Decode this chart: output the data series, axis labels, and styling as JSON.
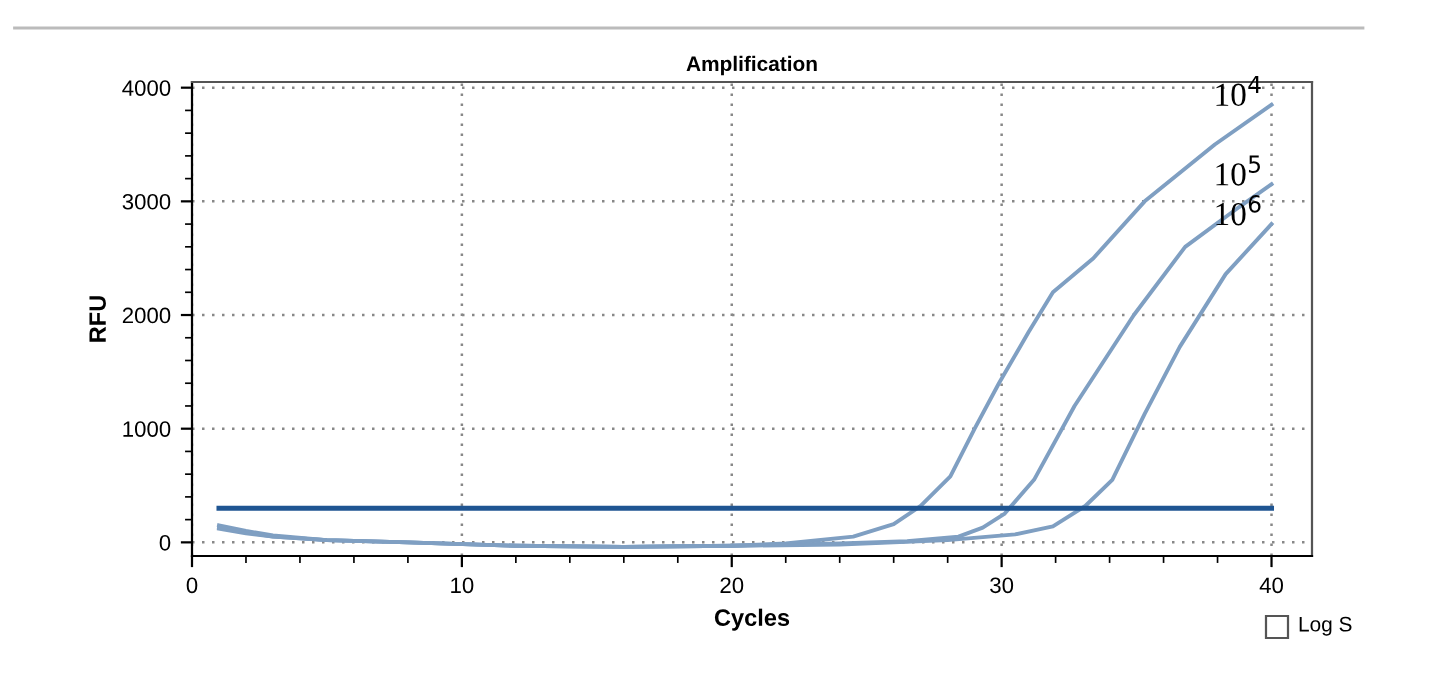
{
  "chart_data": {
    "type": "line",
    "title": "Amplification",
    "xlabel": "Cycles",
    "ylabel": "RFU",
    "xlim": [
      0,
      41.5
    ],
    "ylim": [
      -120,
      4050
    ],
    "xticks": [
      0,
      10,
      20,
      30,
      40
    ],
    "yticks": [
      0,
      1000,
      2000,
      3000,
      4000
    ],
    "grid": true,
    "line_style": "solid",
    "marker": "none",
    "series": [
      {
        "name": "10$^{4}$",
        "color": "#7f9fc2",
        "x": [
          1,
          2,
          3,
          5,
          8,
          12,
          16,
          20,
          22,
          24.5,
          26,
          27,
          28.1,
          29,
          29.9,
          31,
          31.9,
          33.4,
          35.3,
          37.9,
          40
        ],
        "values": [
          150,
          100,
          60,
          20,
          0,
          -30,
          -40,
          -30,
          -10,
          50,
          160,
          320,
          580,
          1000,
          1400,
          1850,
          2200,
          2500,
          3000,
          3500,
          3850
        ]
      },
      {
        "name": "10$^{5}$",
        "color": "#7f9fc2",
        "x": [
          1,
          2,
          3,
          5,
          8,
          12,
          16,
          20,
          24,
          26.5,
          28.4,
          29.3,
          30.1,
          31.2,
          32.7,
          34.9,
          36.8,
          38.8,
          40
        ],
        "values": [
          120,
          80,
          50,
          20,
          0,
          -30,
          -40,
          -30,
          -10,
          10,
          50,
          130,
          250,
          550,
          1200,
          2000,
          2600,
          2950,
          3150
        ]
      },
      {
        "name": "10$^{6}$",
        "color": "#7f9fc2",
        "x": [
          1,
          2,
          3,
          5,
          8,
          12,
          16,
          20,
          24,
          28,
          30.5,
          31.9,
          33.1,
          34.1,
          35.3,
          36.6,
          38.3,
          40
        ],
        "values": [
          130,
          90,
          50,
          20,
          0,
          -30,
          -40,
          -30,
          -20,
          20,
          70,
          140,
          320,
          550,
          1130,
          1720,
          2360,
          2800
        ]
      }
    ],
    "ref_lines": [
      {
        "axis": "y",
        "value": 300,
        "color": "#1f5592",
        "line_style": "solid"
      }
    ],
    "annotations": [
      "Log S"
    ]
  }
}
